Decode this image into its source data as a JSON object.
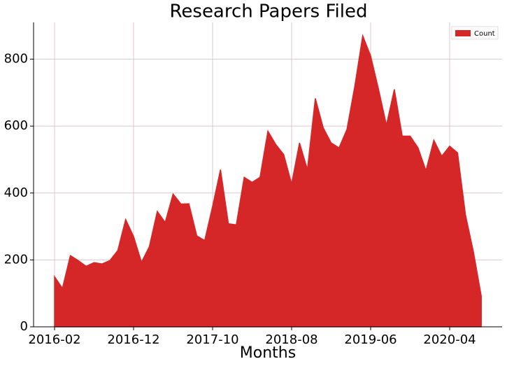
{
  "chart_data": {
    "type": "area",
    "title": "Research Papers Filed",
    "x_label": "Months",
    "categories": [
      "2016-02",
      null,
      null,
      null,
      null,
      null,
      null,
      null,
      null,
      null,
      "2016-12",
      null,
      null,
      null,
      null,
      null,
      null,
      null,
      null,
      null,
      "2017-10",
      null,
      null,
      null,
      null,
      null,
      null,
      null,
      null,
      null,
      "2018-08",
      null,
      null,
      null,
      null,
      null,
      null,
      null,
      null,
      null,
      "2019-06",
      null,
      null,
      null,
      null,
      null,
      null,
      null,
      null,
      null,
      "2020-04",
      null,
      null,
      null,
      null
    ],
    "series": [
      {
        "name": "Count",
        "color": "#d62728",
        "values": [
          150,
          115,
          213,
          198,
          181,
          192,
          188,
          198,
          228,
          321,
          270,
          193,
          240,
          345,
          312,
          397,
          367,
          368,
          272,
          258,
          360,
          470,
          308,
          305,
          447,
          432,
          447,
          585,
          545,
          515,
          427,
          550,
          470,
          683,
          595,
          550,
          535,
          590,
          720,
          870,
          810,
          710,
          603,
          710,
          570,
          570,
          535,
          467,
          558,
          510,
          540,
          520,
          335,
          225,
          92
        ]
      }
    ],
    "ylim": [
      0,
      910
    ],
    "yticks": [
      0,
      200,
      400,
      600,
      800
    ],
    "grid": true,
    "legend": "upper right"
  }
}
